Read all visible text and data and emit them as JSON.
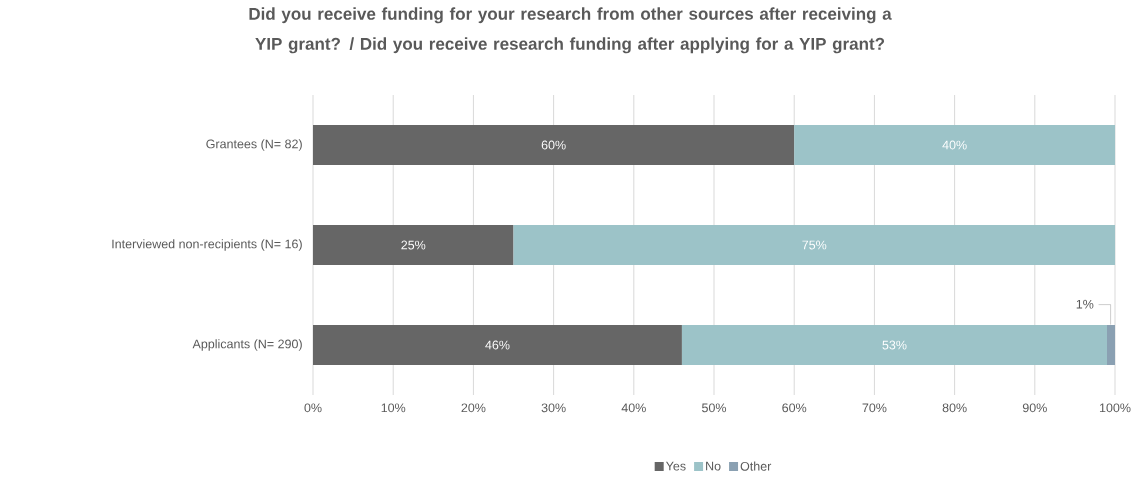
{
  "chart_data": {
    "type": "bar",
    "orientation": "horizontal",
    "stacked": true,
    "title": "Did you receive funding for your research from other sources after receiving a YIP grant? / Did you receive research funding after applying for a YIP grant?",
    "categories": [
      "Grantees (N= 82)",
      "Interviewed non-recipients (N= 16)",
      "Applicants (N= 290)"
    ],
    "series": [
      {
        "name": "Yes",
        "color": "#666666",
        "values": [
          60,
          25,
          46
        ],
        "value_labels": [
          "60%",
          "25%",
          "46%"
        ]
      },
      {
        "name": "No",
        "color": "#9cc3c8",
        "values": [
          40,
          75,
          53
        ],
        "value_labels": [
          "40%",
          "75%",
          "53%"
        ]
      },
      {
        "name": "Other",
        "color": "#8aa0b2",
        "values": [
          null,
          null,
          1
        ],
        "value_labels": [
          null,
          null,
          "1%"
        ]
      }
    ],
    "xlim": [
      0,
      100
    ],
    "xticks": [
      {
        "value": 0,
        "label": "0%"
      },
      {
        "value": 10,
        "label": "10%"
      },
      {
        "value": 20,
        "label": "20%"
      },
      {
        "value": 30,
        "label": "30%"
      },
      {
        "value": 40,
        "label": "40%"
      },
      {
        "value": 50,
        "label": "50%"
      },
      {
        "value": 60,
        "label": "60%"
      },
      {
        "value": 70,
        "label": "70%"
      },
      {
        "value": 80,
        "label": "80%"
      },
      {
        "value": 90,
        "label": "90%"
      },
      {
        "value": 100,
        "label": "100%"
      }
    ],
    "grid": "x",
    "legend": "bottom"
  }
}
